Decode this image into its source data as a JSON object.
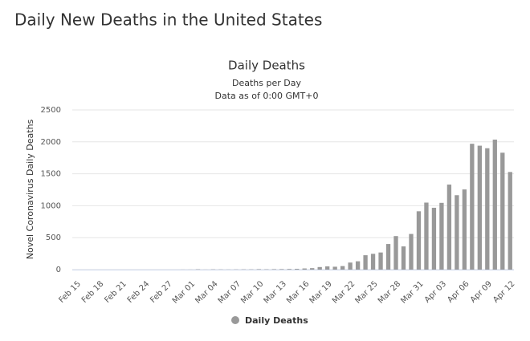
{
  "page_title": "Daily New Deaths in the United States",
  "chart_data": {
    "type": "bar",
    "title": "Daily Deaths",
    "subtitle": [
      "Deaths per Day",
      "Data as of 0:00 GMT+0"
    ],
    "y_label": "Novel Coronavirus Daily Deaths",
    "categories": [
      "Feb 15",
      null,
      null,
      "Feb 18",
      null,
      null,
      "Feb 21",
      null,
      null,
      "Feb 24",
      null,
      null,
      "Feb 27",
      null,
      null,
      "Mar 01",
      null,
      null,
      "Mar 04",
      null,
      null,
      "Mar 07",
      null,
      null,
      "Mar 10",
      null,
      null,
      "Mar 13",
      null,
      null,
      "Mar 16",
      null,
      null,
      "Mar 19",
      null,
      null,
      "Mar 22",
      null,
      null,
      "Mar 25",
      null,
      null,
      "Mar 28",
      null,
      null,
      "Mar 31",
      null,
      null,
      "Apr 03",
      null,
      null,
      "Apr 06",
      null,
      null,
      "Apr 09",
      null,
      null,
      "Apr 12"
    ],
    "series": [
      {
        "name": "Daily Deaths",
        "color": "#999999",
        "values": [
          0,
          0,
          0,
          0,
          0,
          0,
          0,
          0,
          0,
          0,
          0,
          0,
          0,
          0,
          1,
          1,
          5,
          1,
          4,
          3,
          2,
          3,
          4,
          4,
          7,
          5,
          7,
          8,
          10,
          12,
          18,
          23,
          40,
          50,
          45,
          55,
          110,
          130,
          225,
          247,
          268,
          401,
          525,
          363,
          558,
          913,
          1049,
          968,
          1045,
          1331,
          1165,
          1255,
          1970,
          1940,
          1900,
          2035,
          1830,
          1528
        ]
      }
    ],
    "ylim": [
      0,
      2500
    ],
    "yticks": [
      0,
      500,
      1000,
      1500,
      2000,
      2500
    ],
    "grid": true,
    "legend": "bottom"
  }
}
